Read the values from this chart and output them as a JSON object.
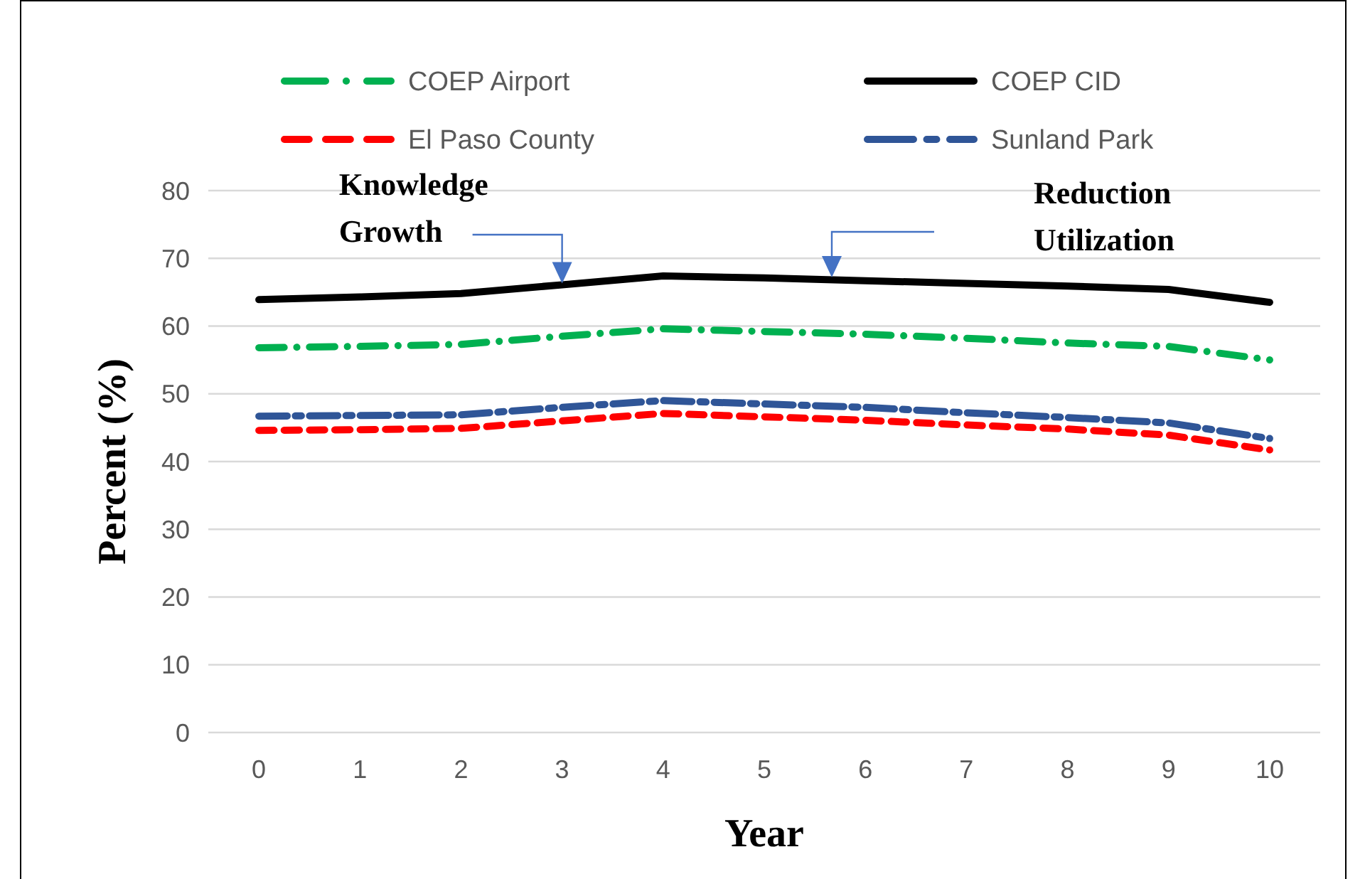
{
  "chart_data": {
    "type": "line",
    "xlabel": "Year",
    "ylabel": "Percent (%)",
    "x": [
      0,
      1,
      2,
      3,
      4,
      5,
      6,
      7,
      8,
      9,
      10
    ],
    "xlim": [
      -0.5,
      10.5
    ],
    "xticks": [
      0,
      1,
      2,
      3,
      4,
      5,
      6,
      7,
      8,
      9,
      10
    ],
    "ylim": [
      0,
      80
    ],
    "yticks": [
      0,
      10,
      20,
      30,
      40,
      50,
      60,
      70,
      80
    ],
    "grid": "y",
    "legend": "top",
    "marker": "none",
    "series": [
      {
        "name": "COEP Airport",
        "color": "#00b050",
        "line_style": "dashed",
        "values": [
          56.8,
          57.0,
          57.3,
          58.5,
          59.6,
          59.2,
          58.8,
          58.2,
          57.5,
          57.0,
          55.0
        ]
      },
      {
        "name": "COEP CID",
        "color": "#000000",
        "line_style": "solid",
        "values": [
          63.9,
          64.3,
          64.8,
          66.1,
          67.4,
          67.1,
          66.7,
          66.3,
          65.9,
          65.4,
          63.5
        ]
      },
      {
        "name": "El Paso County",
        "color": "#ff0000",
        "line_style": "dashed",
        "values": [
          44.6,
          44.7,
          44.9,
          46.0,
          47.1,
          46.6,
          46.1,
          45.4,
          44.8,
          43.9,
          41.7
        ]
      },
      {
        "name": "Sunland Park",
        "color": "#2f5597",
        "line_style": "dashed",
        "values": [
          46.7,
          46.8,
          46.9,
          48.0,
          49.0,
          48.5,
          48.0,
          47.2,
          46.5,
          45.7,
          43.4
        ]
      }
    ],
    "annotations": [
      {
        "text": "Knowledge Growth",
        "x": 3,
        "y": 66.1
      },
      "Reduction Utilization"
    ]
  }
}
